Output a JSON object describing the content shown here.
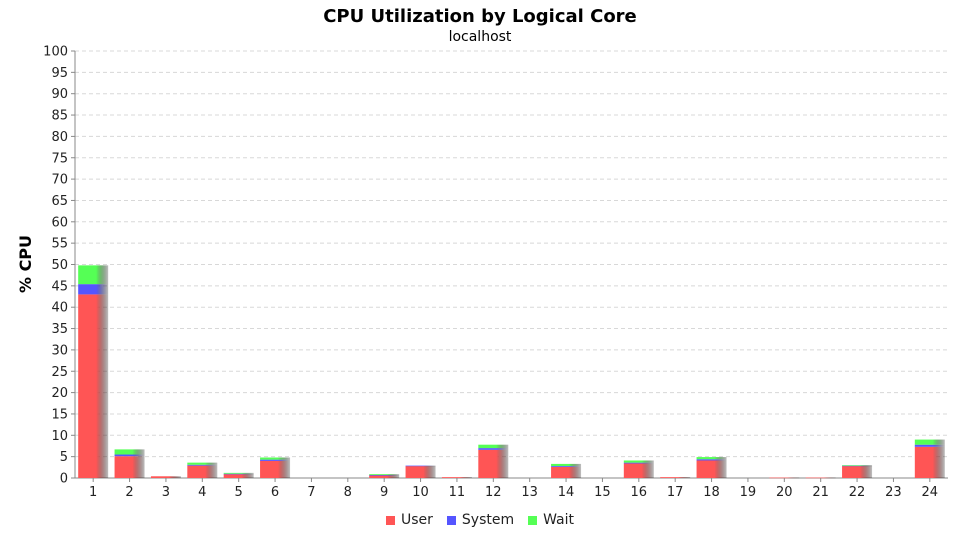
{
  "chart_data": {
    "type": "bar",
    "stacked": true,
    "title": "CPU Utilization by Logical Core",
    "subtitle": "localhost",
    "xlabel": "",
    "ylabel": "% CPU",
    "ylim": [
      0,
      100
    ],
    "yticks": [
      0,
      5,
      10,
      15,
      20,
      25,
      30,
      35,
      40,
      45,
      50,
      55,
      60,
      65,
      70,
      75,
      80,
      85,
      90,
      95,
      100
    ],
    "grid": true,
    "legend_position": "bottom",
    "categories": [
      "1",
      "2",
      "3",
      "4",
      "5",
      "6",
      "7",
      "8",
      "9",
      "10",
      "11",
      "12",
      "13",
      "14",
      "15",
      "16",
      "17",
      "18",
      "19",
      "20",
      "21",
      "22",
      "23",
      "24"
    ],
    "series": [
      {
        "name": "User",
        "color": "#ff5555",
        "values": [
          43,
          5.1,
          0.4,
          2.9,
          0.9,
          4.0,
          0,
          0,
          0.6,
          2.8,
          0.2,
          6.6,
          0,
          2.6,
          0,
          3.4,
          0.2,
          4.1,
          0,
          0.1,
          0.1,
          2.8,
          0,
          7.3
        ]
      },
      {
        "name": "System",
        "color": "#5555ff",
        "values": [
          2.4,
          0.4,
          0,
          0.2,
          0.1,
          0.3,
          0,
          0,
          0.1,
          0.1,
          0,
          0.4,
          0,
          0.2,
          0,
          0.2,
          0,
          0.3,
          0,
          0,
          0,
          0.1,
          0,
          0.5
        ]
      },
      {
        "name": "Wait",
        "color": "#55ff55",
        "values": [
          4.4,
          1.2,
          0,
          0.5,
          0.2,
          0.5,
          0,
          0,
          0.2,
          0,
          0,
          0.8,
          0,
          0.5,
          0,
          0.5,
          0,
          0.5,
          0,
          0,
          0,
          0.1,
          0,
          1.2
        ]
      }
    ]
  }
}
